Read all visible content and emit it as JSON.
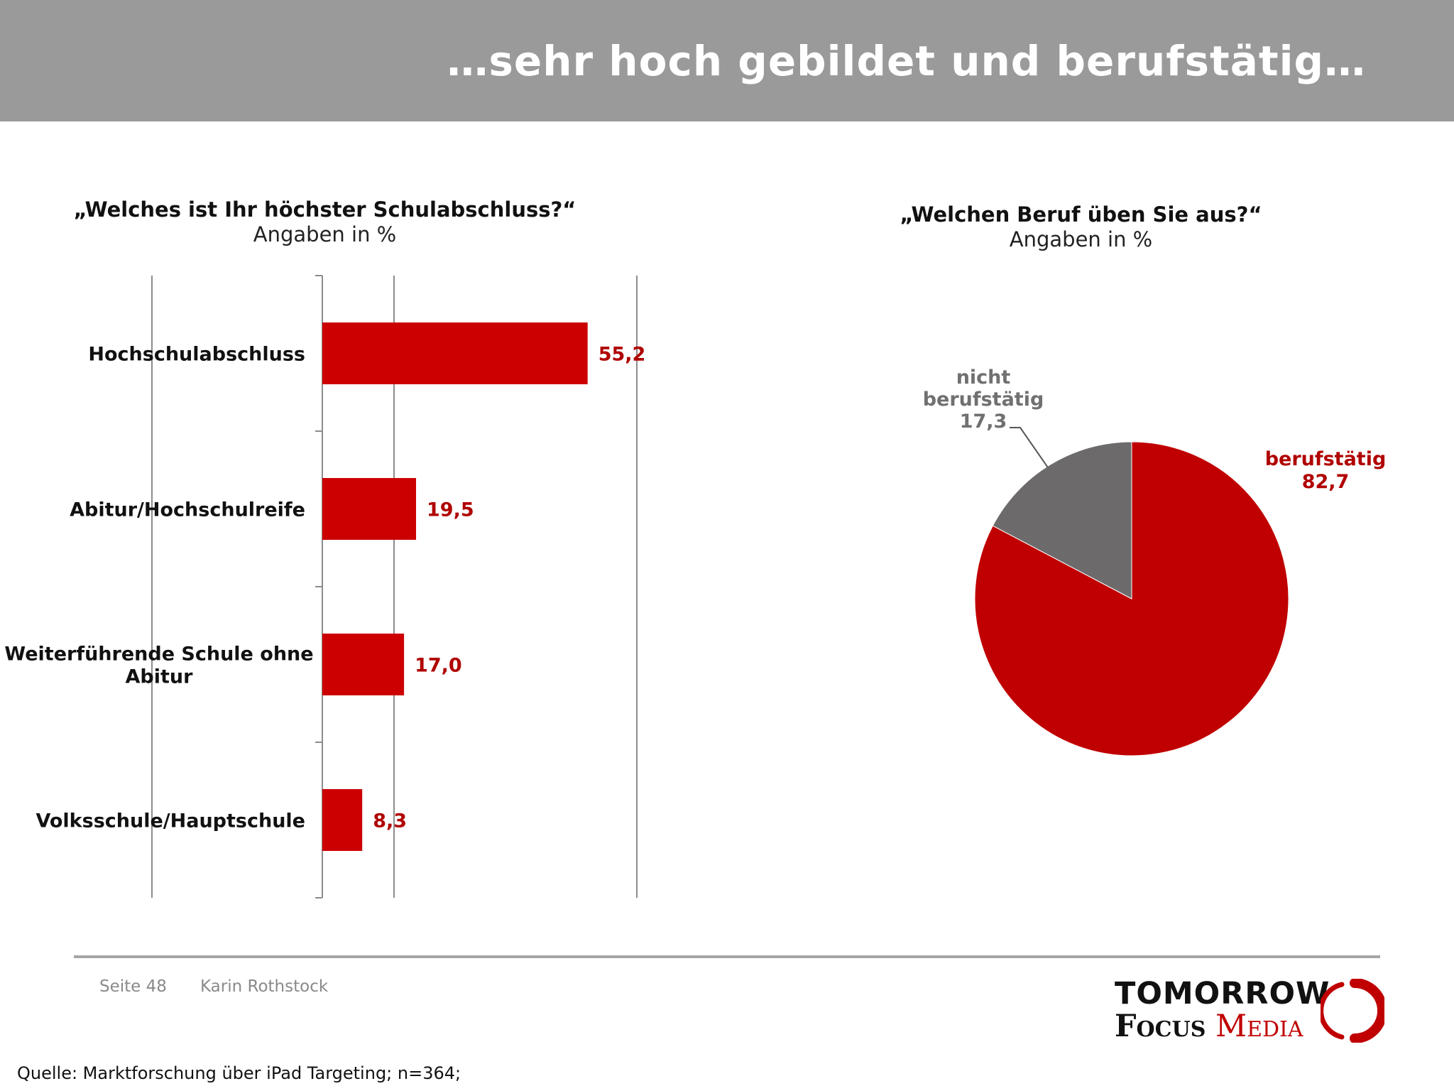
{
  "header": {
    "title": "…sehr hoch gebildet und berufstätig…"
  },
  "chart_data": [
    {
      "type": "bar",
      "orientation": "horizontal",
      "title": "„Welches ist Ihr höchster Schulabschluss?“",
      "subtitle": "Angaben in %",
      "categories": [
        "Hochschulabschluss",
        "Abitur/Hochschulreife",
        "Weiterführende Schule ohne Abitur",
        "Volksschule/Hauptschule"
      ],
      "values": [
        55.2,
        19.5,
        17.0,
        8.3
      ],
      "value_labels": [
        "55,2",
        "19,5",
        "17,0",
        "8,3"
      ],
      "xlim": [
        0,
        65
      ],
      "grid": true,
      "color": "#cc0000"
    },
    {
      "type": "pie",
      "title": "„Welchen Beruf üben Sie aus?“",
      "subtitle": "Angaben in %",
      "slices": [
        {
          "label": "berufstätig",
          "value": 82.7,
          "value_label": "82,7",
          "color": "#c00000"
        },
        {
          "label": "nicht berufstätig",
          "value": 17.3,
          "value_label": "17,3",
          "color": "#6d6a6c"
        }
      ]
    }
  ],
  "footer": {
    "page": "Seite 48",
    "author": "Karin Rothstock",
    "source": "Quelle: Marktforschung über iPad Targeting; n=364;"
  },
  "logo": {
    "line1": "TOMORROW",
    "focus": "Focus",
    "media": "Media"
  }
}
